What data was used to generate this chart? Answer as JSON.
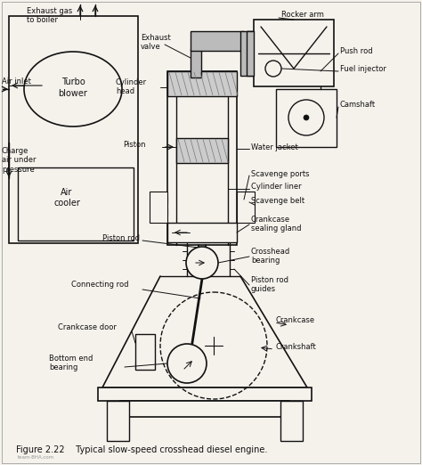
{
  "caption": "Figure 2.22    Typical slow-speed crosshead diesel engine.",
  "bg_color": "#f5f2ec",
  "line_color": "#111111",
  "hatch_color": "#888888",
  "labels": {
    "exhaust_gas": "Exhaust gas\nto boiler",
    "air_inlet": "Air inlet",
    "turbo_blower": "Turbo\nblower",
    "charge_air": "Charge\nair under\npressure",
    "air_cooler": "Air\ncooler",
    "exhaust_valve": "Exhaust\nvalve",
    "rocker_arm": "Rocker arm",
    "push_rod": "Push rod",
    "fuel_injector": "Fuel injector",
    "camshaft": "Camshaft",
    "cylinder_head": "Cylinder\nhead",
    "piston": "Piston",
    "water_jacket": "Water jacket",
    "scavenge_ports": "Scavenge ports",
    "cylinder_liner": "Cylinder liner",
    "scavenge_belt": "Scavenge belt",
    "crankcase_sealing": "Crankcase\nsealing gland",
    "piston_rod": "Piston rod",
    "crosshead_bearing": "Crosshead\nbearing",
    "connecting_rod": "Connecting rod",
    "piston_rod_guides": "Piston rod\nguides",
    "crankcase_door": "Crankcase door",
    "crankcase": "Crankcase",
    "bottom_end": "Bottom end\nbearing",
    "crankshaft": "Crankshaft"
  }
}
